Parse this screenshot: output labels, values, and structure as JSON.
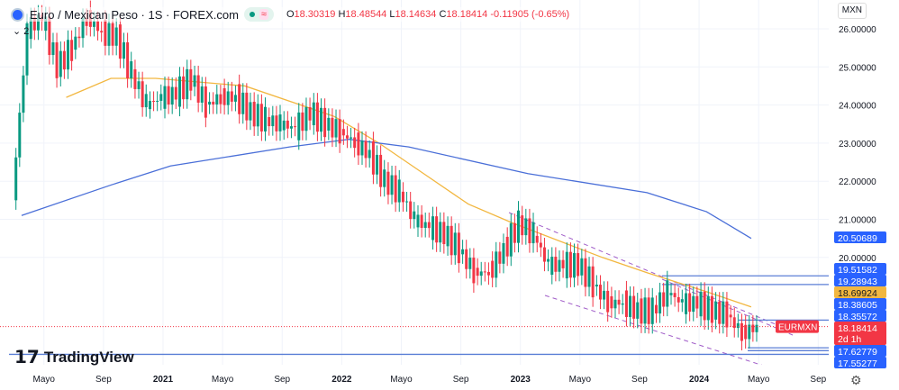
{
  "header": {
    "title": "Euro / Mexican Peso · 1S · FOREX.com",
    "indicators_collapsed": "2",
    "currency": "MXN",
    "ohlc": {
      "o_label": "O",
      "o": "18.30319",
      "h_label": "H",
      "h": "18.48544",
      "l_label": "L",
      "l": "18.14634",
      "c_label": "C",
      "c": "18.18414",
      "change": "-0.11905 (-0.65%)"
    }
  },
  "branding": {
    "logo": "TradingView"
  },
  "icons": {
    "symbol": "globe-icon",
    "status": "market-status-icon",
    "settings": "gear-icon"
  },
  "chart_data": {
    "type": "candlestick",
    "symbol": "EURMXN",
    "interval": "1S",
    "ylim": [
      17.4,
      26.2
    ],
    "y_ticks": [
      "26.00000",
      "25.00000",
      "24.00000",
      "23.00000",
      "22.00000",
      "21.00000",
      "20.00000"
    ],
    "x_ticks": [
      "Mayo",
      "Sep",
      "2021",
      "Mayo",
      "Sep",
      "2022",
      "Mayo",
      "Sep",
      "2023",
      "Mayo",
      "Sep",
      "2024",
      "Mayo",
      "Sep"
    ],
    "x_tick_dates": [
      "2020-05",
      "2020-09",
      "2021-01",
      "2021-05",
      "2021-09",
      "2022-01",
      "2022-05",
      "2022-09",
      "2023-01",
      "2023-05",
      "2023-09",
      "2024-01",
      "2024-05",
      "2024-09"
    ],
    "dates": [
      "2020-03",
      "2020-04",
      "2020-05",
      "2020-06",
      "2020-07",
      "2020-08",
      "2020-09",
      "2020-10",
      "2020-11",
      "2020-12",
      "2021-01",
      "2021-02",
      "2021-03",
      "2021-04",
      "2021-05",
      "2021-06",
      "2021-07",
      "2021-08",
      "2021-09",
      "2021-10",
      "2021-11",
      "2021-12",
      "2022-01",
      "2022-02",
      "2022-03",
      "2022-04",
      "2022-05",
      "2022-06",
      "2022-07",
      "2022-08",
      "2022-09",
      "2022-10",
      "2022-11",
      "2022-12",
      "2023-01",
      "2023-02",
      "2023-03",
      "2023-04",
      "2023-05",
      "2023-06",
      "2023-07",
      "2023-08",
      "2023-09",
      "2023-10",
      "2023-11",
      "2023-12",
      "2024-01",
      "2024-02",
      "2024-03",
      "2024-04"
    ],
    "close": [
      26.0,
      26.3,
      25.0,
      25.5,
      26.3,
      25.9,
      25.8,
      24.8,
      24.0,
      24.2,
      24.3,
      24.7,
      24.0,
      24.2,
      24.2,
      23.8,
      23.6,
      23.5,
      23.4,
      23.8,
      23.5,
      23.3,
      23.0,
      22.7,
      22.0,
      21.7,
      21.0,
      20.8,
      20.6,
      20.2,
      19.6,
      19.6,
      20.2,
      20.9,
      20.6,
      19.8,
      19.8,
      19.8,
      19.3,
      18.8,
      18.8,
      18.6,
      18.6,
      19.1,
      18.8,
      18.8,
      18.6,
      18.5,
      18.0,
      18.18
    ],
    "series": [
      {
        "color": "#f2b740",
        "points": [
          [
            "2020-06",
            24.2
          ],
          [
            "2020-09",
            24.7
          ],
          [
            "2020-12",
            24.7
          ],
          [
            "2021-06",
            24.5
          ],
          [
            "2021-12",
            23.7
          ],
          [
            "2022-03",
            23.0
          ],
          [
            "2022-06",
            22.2
          ],
          [
            "2022-09",
            21.4
          ],
          [
            "2022-12",
            20.9
          ],
          [
            "2023-06",
            20.0
          ],
          [
            "2023-09",
            19.6
          ],
          [
            "2024-01",
            19.1
          ],
          [
            "2024-04",
            18.7
          ]
        ]
      },
      {
        "color": "#4a6fd8",
        "points": [
          [
            "2020-03",
            21.1
          ],
          [
            "2020-09",
            21.9
          ],
          [
            "2021-01",
            22.4
          ],
          [
            "2021-09",
            22.9
          ],
          [
            "2022-01",
            23.1
          ],
          [
            "2022-05",
            22.9
          ],
          [
            "2023-01",
            22.2
          ],
          [
            "2023-09",
            21.7
          ],
          [
            "2024-01",
            21.2
          ],
          [
            "2024-04",
            20.5
          ]
        ]
      }
    ],
    "price_labels": [
      {
        "value": "20.50689",
        "color": "#2962ff"
      },
      {
        "value": "19.51582",
        "color": "#2962ff"
      },
      {
        "value": "19.28943",
        "color": "#2962ff"
      },
      {
        "value": "18.69924",
        "color": "#f2b740"
      },
      {
        "value": "18.38605",
        "color": "#2962ff"
      },
      {
        "value": "18.35572",
        "color": "#2962ff"
      },
      {
        "value": "18.18414",
        "color": "#f23645",
        "extra": "2d 1h"
      },
      {
        "value": "17.62779",
        "color": "#2962ff"
      },
      {
        "value": "17.55277",
        "color": "#2962ff"
      }
    ],
    "last_price_tag": "EURMXN",
    "horizontal_levels": [
      19.51582,
      19.28943,
      18.35572,
      17.62779,
      17.55277,
      17.4556
    ],
    "colors": {
      "up": "#089981",
      "down": "#f23645"
    }
  }
}
